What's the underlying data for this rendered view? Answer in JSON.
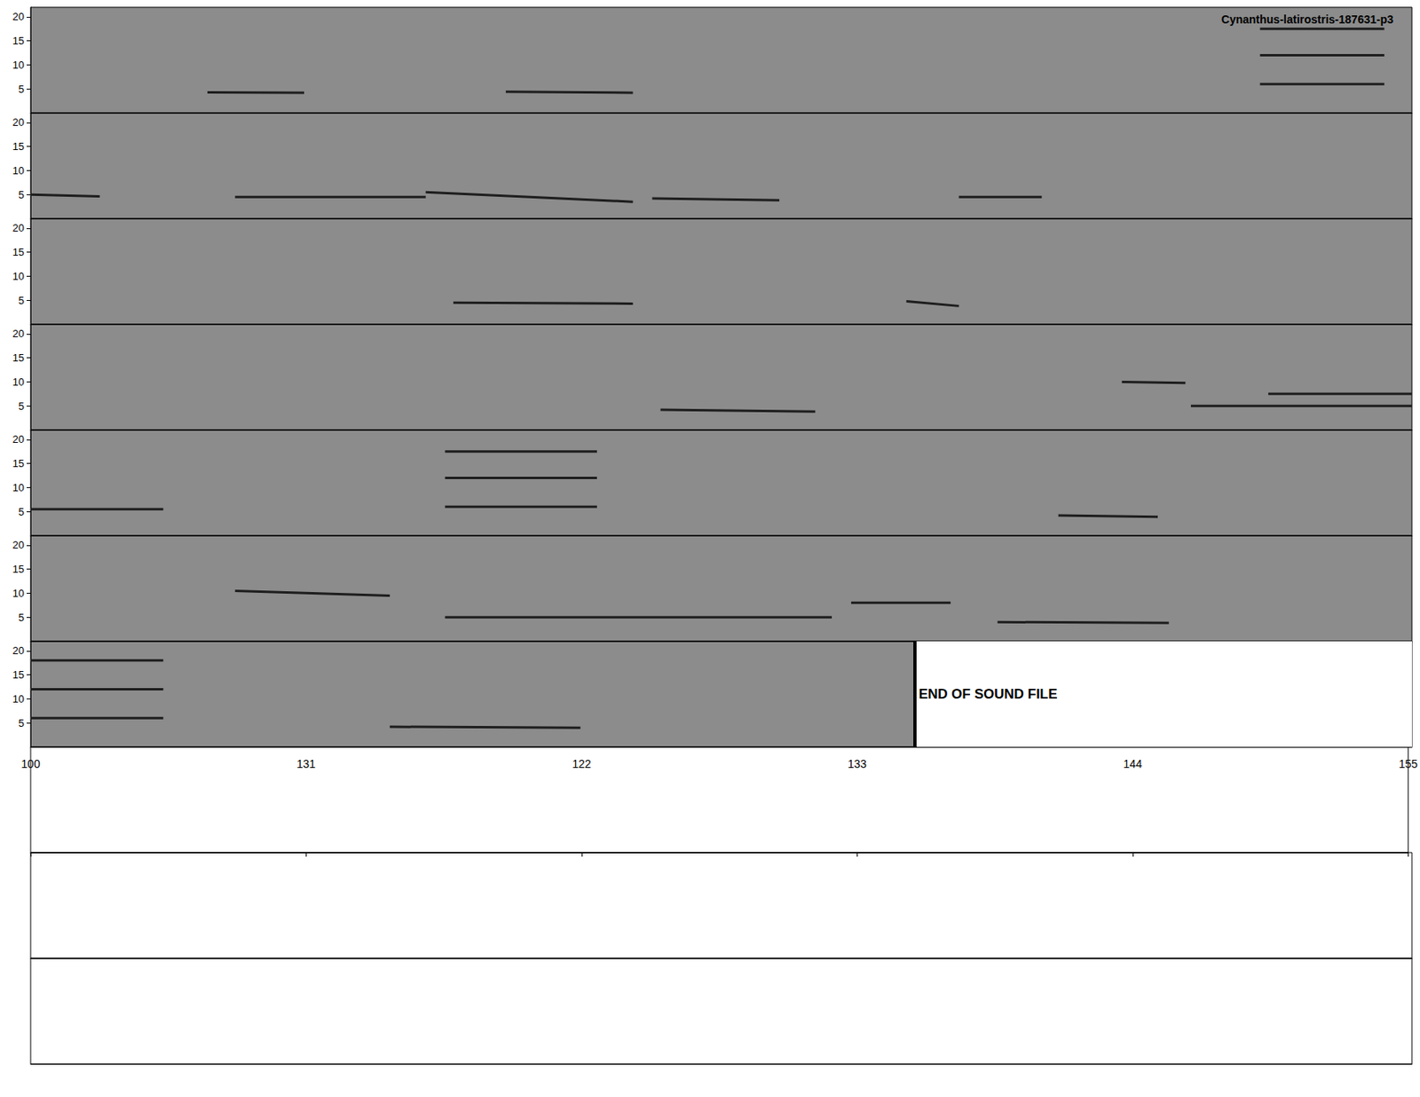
{
  "chart_data": {
    "type": "spectrogram",
    "title": "Cynanthus-latirostris-187631-p3",
    "ylim": [
      0,
      22
    ],
    "yticks": [
      5,
      10,
      15,
      20
    ],
    "color": "#1e1e1e",
    "tick_labels": "y",
    "rows": [
      {
        "xlim": [
          95,
          100
        ],
        "traces": [
          {
            "x": [
              95.64,
              95.99
            ],
            "y": [
              4.3,
              4.2
            ]
          },
          {
            "x": [
              96.72,
              97.18
            ],
            "y": [
              4.4,
              4.2
            ]
          },
          {
            "x": [
              99.45,
              99.9
            ],
            "y": [
              6.0,
              6.0
            ]
          },
          {
            "x": [
              99.45,
              99.9
            ],
            "y": [
              12.0,
              12.0
            ]
          },
          {
            "x": [
              99.45,
              99.9
            ],
            "y": [
              17.5,
              17.5
            ]
          }
        ]
      },
      {
        "xlim": [
          100,
          105
        ],
        "traces": [
          {
            "x": [
              100.0,
              100.25
            ],
            "y": [
              5.0,
              4.6
            ]
          },
          {
            "x": [
              100.74,
              101.43
            ],
            "y": [
              4.5,
              4.5
            ]
          },
          {
            "x": [
              101.43,
              102.18
            ],
            "y": [
              5.5,
              3.5
            ]
          },
          {
            "x": [
              102.25,
              102.71
            ],
            "y": [
              4.2,
              3.8
            ]
          },
          {
            "x": [
              103.36,
              103.66
            ],
            "y": [
              4.5,
              4.5
            ]
          }
        ]
      },
      {
        "xlim": [
          105,
          110
        ],
        "traces": [
          {
            "x": [
              106.53,
              107.18
            ],
            "y": [
              4.5,
              4.3
            ]
          },
          {
            "x": [
              108.17,
              108.36
            ],
            "y": [
              4.8,
              3.8
            ]
          }
        ]
      },
      {
        "xlim": [
          110,
          115
        ],
        "traces": [
          {
            "x": [
              112.28,
              112.84
            ],
            "y": [
              4.2,
              3.8
            ]
          },
          {
            "x": [
              113.95,
              114.18
            ],
            "y": [
              10.0,
              9.8
            ]
          },
          {
            "x": [
              114.2,
              115.0
            ],
            "y": [
              5.0,
              5.0
            ]
          },
          {
            "x": [
              114.48,
              115.0
            ],
            "y": [
              7.5,
              7.5
            ]
          }
        ]
      },
      {
        "xlim": [
          115,
          120
        ],
        "traces": [
          {
            "x": [
              115.0,
              115.48
            ],
            "y": [
              5.5,
              5.5
            ]
          },
          {
            "x": [
              116.5,
              117.05
            ],
            "y": [
              6.0,
              6.0
            ]
          },
          {
            "x": [
              116.5,
              117.05
            ],
            "y": [
              12.0,
              12.0
            ]
          },
          {
            "x": [
              116.5,
              117.05
            ],
            "y": [
              17.5,
              17.5
            ]
          },
          {
            "x": [
              118.72,
              119.08
            ],
            "y": [
              4.2,
              3.9
            ]
          }
        ]
      },
      {
        "xlim": [
          120,
          125
        ],
        "traces": [
          {
            "x": [
              120.74,
              121.3
            ],
            "y": [
              10.5,
              9.5
            ]
          },
          {
            "x": [
              121.5,
              122.9
            ],
            "y": [
              5.0,
              5.0
            ]
          },
          {
            "x": [
              122.97,
              123.33
            ],
            "y": [
              8.0,
              8.0
            ]
          },
          {
            "x": [
              123.5,
              124.12
            ],
            "y": [
              4.0,
              3.8
            ]
          }
        ]
      },
      {
        "xlim": [
          125,
          130
        ],
        "traces": [
          {
            "x": [
              125.0,
              125.48
            ],
            "y": [
              6.0,
              6.0
            ]
          },
          {
            "x": [
              125.0,
              125.48
            ],
            "y": [
              12.0,
              12.0
            ]
          },
          {
            "x": [
              125.0,
              125.48
            ],
            "y": [
              18.0,
              18.0
            ]
          },
          {
            "x": [
              126.3,
              126.99
            ],
            "y": [
              4.2,
              4.0
            ]
          }
        ]
      }
    ],
    "end_time": 128.2,
    "end_label": "END OF SOUND FILE",
    "bottom_axis": {
      "xlim": [
        0,
        5
      ],
      "xticks": [
        {
          "value": 0,
          "label": "100"
        },
        {
          "value": 1,
          "label": "131"
        },
        {
          "value": 2,
          "label": "122"
        },
        {
          "value": 3,
          "label": "133"
        },
        {
          "value": 4,
          "label": "144"
        },
        {
          "value": 5,
          "label": "155"
        }
      ]
    },
    "empty_rows": 3
  }
}
